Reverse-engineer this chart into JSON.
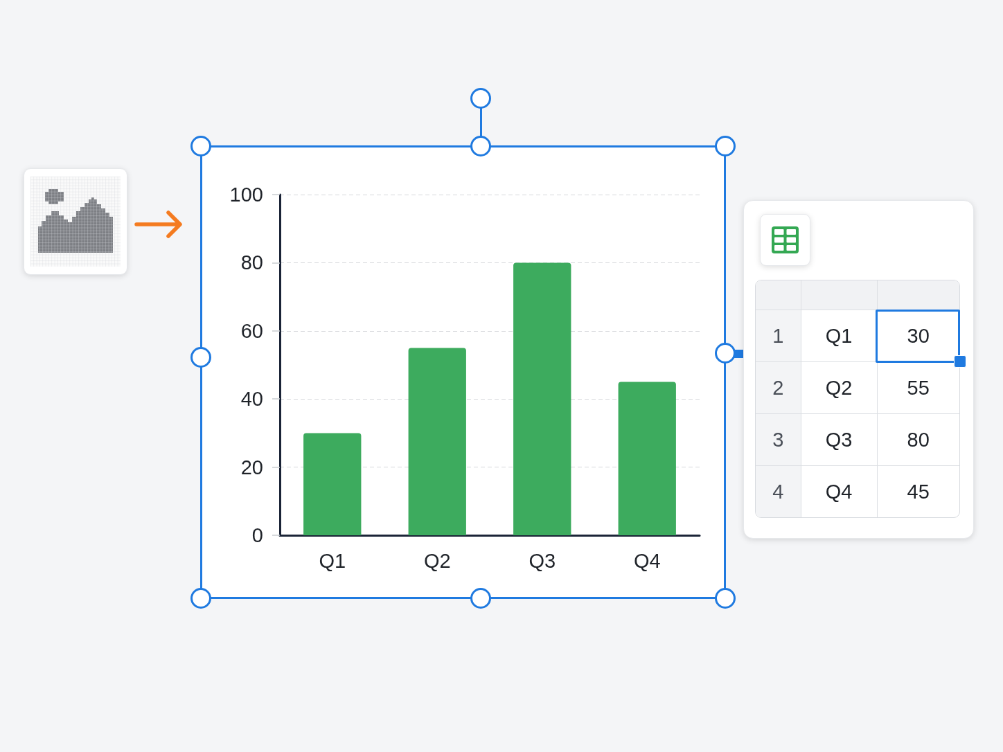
{
  "chart_data": {
    "type": "bar",
    "categories": [
      "Q1",
      "Q2",
      "Q3",
      "Q4"
    ],
    "values": [
      30,
      55,
      80,
      45
    ],
    "color": "#3dab5e",
    "ylim": [
      0,
      100
    ],
    "yticks": [
      0,
      20,
      40,
      60,
      80,
      100
    ],
    "grid": "y",
    "annotations": [
      "1",
      "Q1",
      "30",
      "2",
      "Q2",
      "55",
      "3",
      "Q3",
      "80",
      "4",
      "Q4",
      "45"
    ]
  }
}
